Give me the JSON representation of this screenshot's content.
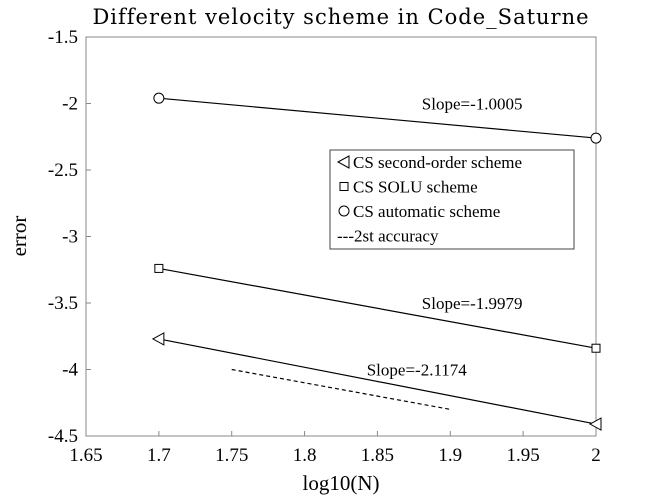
{
  "chart_data": {
    "type": "line",
    "title": "Different velocity scheme in Code_Saturne",
    "xlabel": "log10(N)",
    "ylabel": "error",
    "xlim": [
      1.65,
      2.0
    ],
    "ylim": [
      -4.5,
      -1.5
    ],
    "xticks": [
      1.65,
      1.7,
      1.75,
      1.8,
      1.85,
      1.9,
      1.95,
      2.0
    ],
    "xtick_labels": [
      "1.65",
      "1.7",
      "1.75",
      "1.8",
      "1.85",
      "1.9",
      "1.95",
      "2"
    ],
    "yticks": [
      -4.5,
      -4.0,
      -3.5,
      -3.0,
      -2.5,
      -2.0,
      -1.5
    ],
    "ytick_labels": [
      "-4.5",
      "-4",
      "-3.5",
      "-3",
      "-2.5",
      "-2",
      "-1.5"
    ],
    "grid": false,
    "legend_position": "upper-right",
    "series": [
      {
        "name": "CS second-order scheme",
        "marker": "triangle-left",
        "style": "solid",
        "x": [
          1.7,
          2.0
        ],
        "y": [
          -3.77,
          -4.41
        ]
      },
      {
        "name": "CS SOLU scheme",
        "marker": "square",
        "style": "solid",
        "x": [
          1.7,
          2.0
        ],
        "y": [
          -3.24,
          -3.84
        ]
      },
      {
        "name": "CS automatic scheme",
        "marker": "circle",
        "style": "solid",
        "x": [
          1.7,
          2.0
        ],
        "y": [
          -1.96,
          -2.26
        ]
      },
      {
        "name": "---2st accuracy",
        "marker": "none",
        "style": "dashed",
        "x": [
          1.75,
          1.9
        ],
        "y": [
          -4.0,
          -4.3
        ]
      }
    ],
    "annotations": [
      {
        "text": "Slope=-1.0005",
        "x": 1.915,
        "y": -2.0
      },
      {
        "text": "Slope=-1.9979",
        "x": 1.915,
        "y": -3.5
      },
      {
        "text": "Slope=-2.1174",
        "x": 1.877,
        "y": -4.0
      }
    ]
  }
}
